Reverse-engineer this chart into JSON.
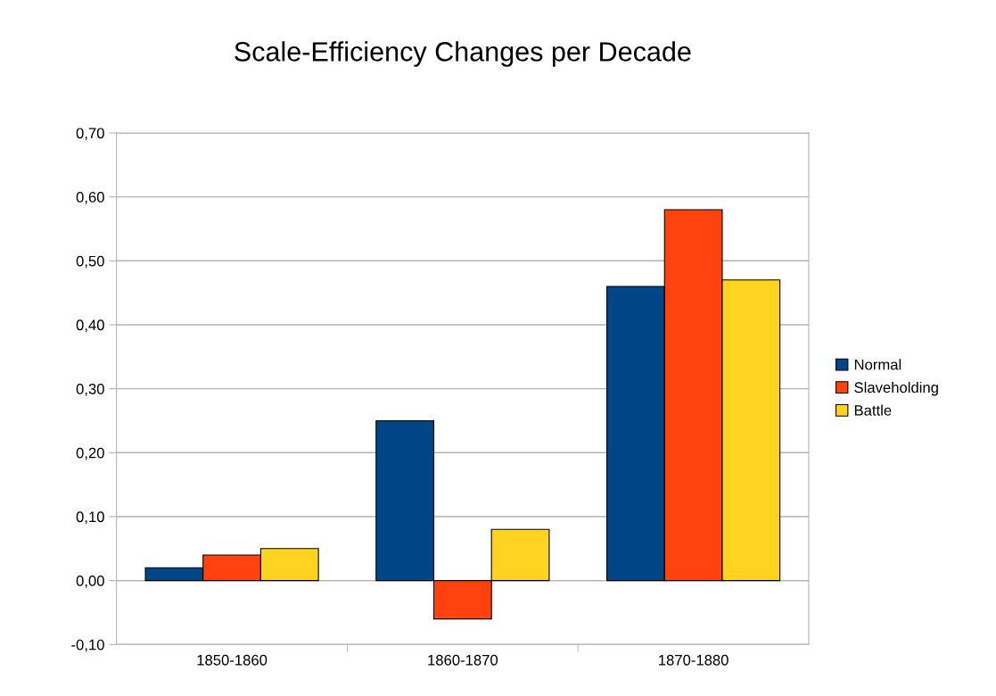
{
  "chart_data": {
    "type": "bar",
    "title": "Scale-Efficiency Changes per Decade",
    "categories": [
      "1850-1860",
      "1860-1870",
      "1870-1880"
    ],
    "series": [
      {
        "name": "Normal",
        "color": "#004586",
        "values": [
          0.02,
          0.25,
          0.46
        ]
      },
      {
        "name": "Slaveholding",
        "color": "#ff420e",
        "values": [
          0.04,
          -0.06,
          0.58
        ]
      },
      {
        "name": "Battle",
        "color": "#ffd320",
        "values": [
          0.05,
          0.08,
          0.47
        ]
      }
    ],
    "ylim": [
      -0.1,
      0.7
    ],
    "yticks": [
      {
        "value": -0.1,
        "label": "-0,10"
      },
      {
        "value": 0,
        "label": "0,00"
      },
      {
        "value": 0.1,
        "label": "0,10"
      },
      {
        "value": 0.2,
        "label": "0,20"
      },
      {
        "value": 0.3,
        "label": "0,30"
      },
      {
        "value": 0.4,
        "label": "0,40"
      },
      {
        "value": 0.5,
        "label": "0,50"
      },
      {
        "value": 0.6,
        "label": "0,60"
      },
      {
        "value": 0.7,
        "label": "0,70"
      }
    ],
    "grid": "y",
    "legend": "right"
  }
}
